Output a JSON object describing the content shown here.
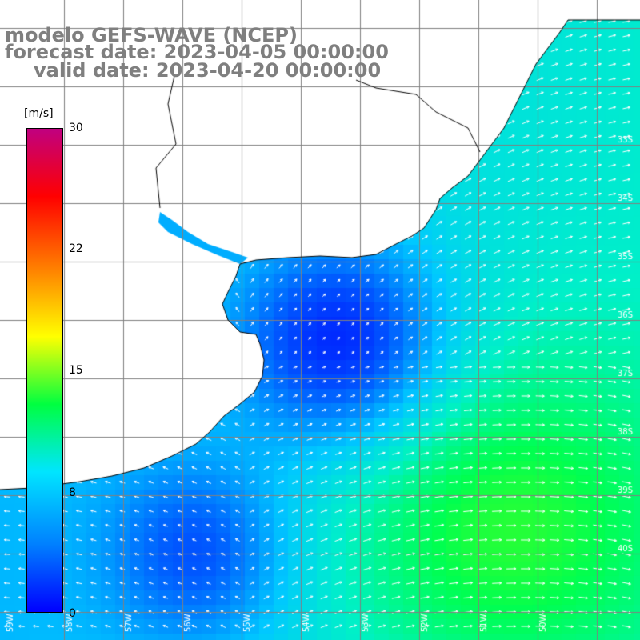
{
  "title": {
    "model": "modelo GEFS-WAVE (NCEP)",
    "forecast": "forecast date: 2023-04-05 00:00:00",
    "valid": "valid date: 2023-04-20 00:00:00"
  },
  "colorbar": {
    "unit": "[m/s]",
    "ticks": [
      "30",
      "22",
      "15",
      "8",
      "0"
    ],
    "colors": [
      "#0000ff",
      "#0080ff",
      "#00e5ff",
      "#00ff40",
      "#ffff00",
      "#ff8000",
      "#ff0000",
      "#c00080"
    ]
  },
  "map": {
    "lon_labels": [
      "59W",
      "58W",
      "57W",
      "56W",
      "55W",
      "54W",
      "53W",
      "52W",
      "51W",
      "50W"
    ],
    "lat_labels": [
      "33S",
      "34S",
      "35S",
      "36S",
      "37S",
      "38S",
      "39S",
      "40S"
    ],
    "land_color": "#ffffff",
    "coast_color": "#000000",
    "grid_color": "#808080"
  }
}
